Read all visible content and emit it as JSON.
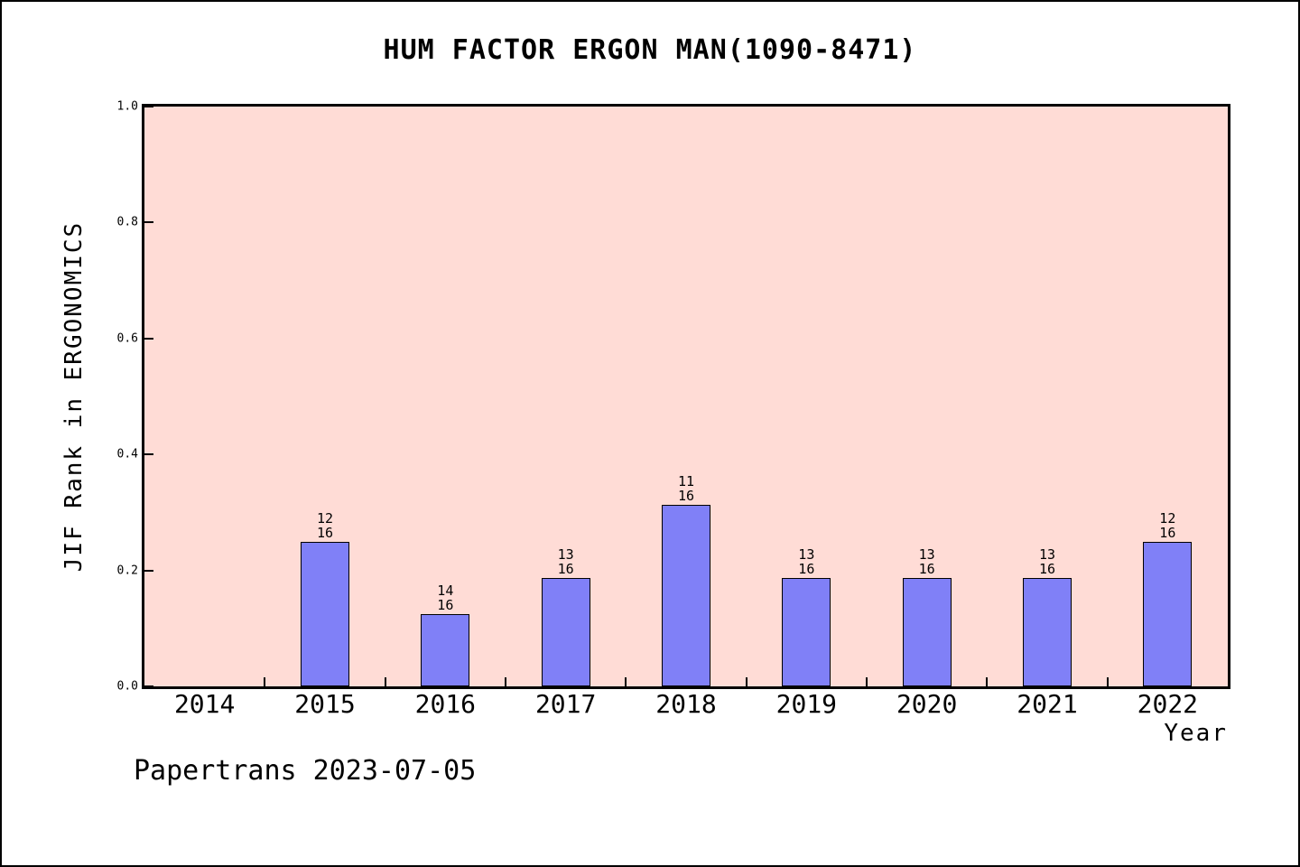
{
  "chart_data": {
    "type": "bar",
    "title": "HUM FACTOR ERGON MAN(1090-8471)",
    "xlabel": "Year",
    "ylabel": "JIF Rank in ERGONOMICS",
    "ylim": [
      0.0,
      1.0
    ],
    "ytick_labels": [
      "0.0",
      "0.2",
      "0.4",
      "0.6",
      "0.8",
      "1.0"
    ],
    "ytick_values": [
      0.0,
      0.2,
      0.4,
      0.6,
      0.8,
      1.0
    ],
    "grid": false,
    "legend": "none",
    "categories": [
      "2014",
      "2015",
      "2016",
      "2017",
      "2018",
      "2019",
      "2020",
      "2021",
      "2022"
    ],
    "bars": [
      {
        "category": "2014",
        "value": 0,
        "rank": null,
        "total": null,
        "label": ""
      },
      {
        "category": "2015",
        "value": 0.25,
        "rank": 12,
        "total": 16,
        "label": "12\n16"
      },
      {
        "category": "2016",
        "value": 0.125,
        "rank": 14,
        "total": 16,
        "label": "14\n16"
      },
      {
        "category": "2017",
        "value": 0.1875,
        "rank": 13,
        "total": 16,
        "label": "13\n16"
      },
      {
        "category": "2018",
        "value": 0.3125,
        "rank": 11,
        "total": 16,
        "label": "11\n16"
      },
      {
        "category": "2019",
        "value": 0.1875,
        "rank": 13,
        "total": 16,
        "label": "13\n16"
      },
      {
        "category": "2020",
        "value": 0.1875,
        "rank": 13,
        "total": 16,
        "label": "13\n16"
      },
      {
        "category": "2021",
        "value": 0.1875,
        "rank": 13,
        "total": 16,
        "label": "13\n16"
      },
      {
        "category": "2022",
        "value": 0.25,
        "rank": 12,
        "total": 16,
        "label": "12\n16"
      }
    ],
    "colors": {
      "bar_fill": "#8080f7",
      "bar_edge": "#000000",
      "plot_background": "#ffdcd6",
      "figure_background": "#ffffff",
      "text": "#000000"
    }
  },
  "footer": {
    "text": "Papertrans 2023-07-05"
  }
}
